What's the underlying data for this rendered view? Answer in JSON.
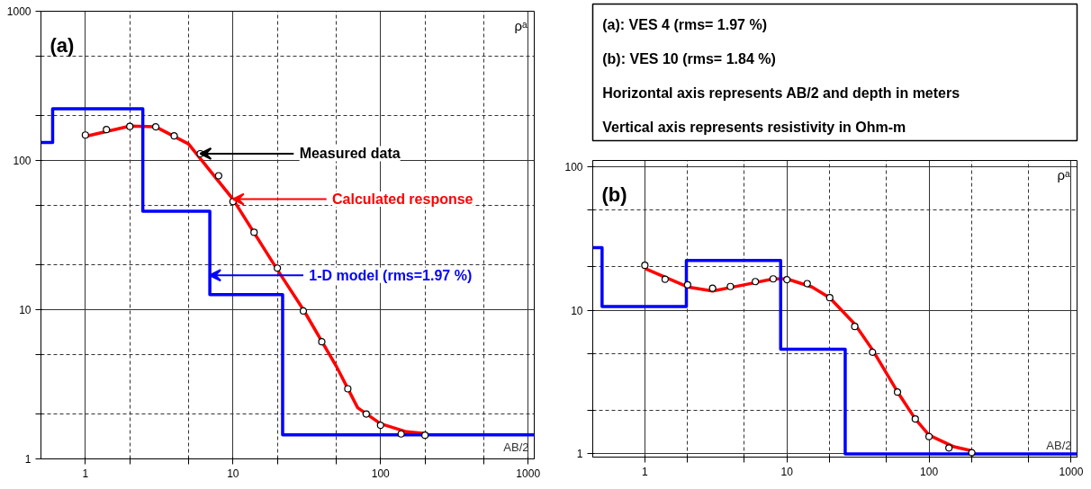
{
  "chart_data": [
    {
      "type": "line",
      "title": "(a)",
      "xlabel": "AB/2",
      "ylabel": "ρᵃ",
      "log": "xy",
      "grid": true,
      "xlim": [
        0.5,
        1100
      ],
      "ylim": [
        1,
        1000
      ],
      "xticks": [
        1,
        {
          "value": 2,
          "label": null
        },
        {
          "value": 5,
          "label": null
        },
        10,
        {
          "value": 20,
          "label": null
        },
        {
          "value": 50,
          "label": null
        },
        100,
        {
          "value": 200,
          "label": null
        },
        {
          "value": 500,
          "label": null
        },
        1000
      ],
      "yticks": [
        1,
        {
          "value": 2,
          "label": null
        },
        {
          "value": 5,
          "label": null
        },
        10,
        {
          "value": 20,
          "label": null
        },
        {
          "value": 50,
          "label": null
        },
        100,
        {
          "value": 200,
          "label": null
        },
        {
          "value": 500,
          "label": null
        },
        1000
      ],
      "series": [
        {
          "type": "scatter",
          "marker": "circle",
          "color": "#000000",
          "x": [
            1,
            1.39,
            2,
            3,
            4,
            6,
            8,
            10,
            13.9,
            20,
            30,
            40,
            60,
            80,
            100,
            138,
            200
          ],
          "values": [
            148,
            161,
            169,
            168,
            146,
            111,
            79,
            53,
            33,
            19,
            9.8,
            6.1,
            2.95,
            2.0,
            1.68,
            1.47,
            1.44
          ]
        },
        {
          "type": "line",
          "color": "#ff0000",
          "x": [
            1,
            2,
            3,
            5,
            10,
            20,
            30,
            50,
            70,
            100,
            150,
            200
          ],
          "values": [
            145,
            170,
            168,
            129,
            55,
            18.5,
            10,
            4.2,
            2.2,
            1.72,
            1.52,
            1.48
          ]
        },
        {
          "type": "line",
          "color": "#0000ff",
          "x": [
            0.5,
            0.6,
            0.6,
            2.45,
            2.45,
            6.97,
            6.97,
            21.7,
            21.7,
            1100
          ],
          "values": [
            132,
            132,
            222,
            222,
            45.6,
            45.6,
            12.6,
            12.6,
            1.45,
            1.45
          ]
        }
      ],
      "annotations": [
        {
          "text": "Measured data",
          "x": 6,
          "y": 111
        },
        {
          "text": "Calculated response",
          "x": 10,
          "y": 55
        },
        {
          "text": "1-D model (rms=1.97 %)",
          "x": 6.97,
          "y": 17
        }
      ]
    },
    {
      "type": "other",
      "annotations": [
        "(a): VES  4  (rms= 1.97 %)",
        "(b): VES 10 (rms= 1.84 %)",
        "Horizontal axis represents AB/2 and depth in meters",
        "Vertical axis represents resistivity in Ohm-m"
      ]
    },
    {
      "type": "line",
      "title": "(b)",
      "xlabel": "AB/2",
      "ylabel": "ρᵃ",
      "log": "xy",
      "grid": true,
      "xlim": [
        0.43,
        1100
      ],
      "ylim": [
        0.95,
        110
      ],
      "xticks": [
        1,
        {
          "value": 2,
          "label": null
        },
        {
          "value": 5,
          "label": null
        },
        10,
        {
          "value": 20,
          "label": null
        },
        {
          "value": 50,
          "label": null
        },
        100,
        {
          "value": 200,
          "label": null
        },
        {
          "value": 500,
          "label": null
        },
        1000
      ],
      "yticks": [
        1,
        {
          "value": 2,
          "label": null
        },
        {
          "value": 5,
          "label": null
        },
        10,
        {
          "value": 20,
          "label": null
        },
        {
          "value": 50,
          "label": null
        },
        100
      ],
      "series": [
        {
          "type": "scatter",
          "marker": "circle",
          "color": "#000000",
          "x": [
            1,
            1.39,
            2,
            3,
            4,
            6,
            8,
            10,
            13.9,
            20,
            30,
            40,
            60,
            80,
            100,
            138,
            200
          ],
          "values": [
            20.5,
            16.4,
            15.0,
            14.2,
            14.6,
            15.8,
            16.5,
            16.3,
            15.3,
            12.2,
            7.7,
            5.1,
            2.69,
            1.75,
            1.32,
            1.1,
            1.02
          ]
        },
        {
          "type": "line",
          "color": "#ff0000",
          "x": [
            1,
            2,
            3,
            5,
            8,
            10,
            15,
            20,
            30,
            40,
            60,
            80,
            100,
            150,
            200
          ],
          "values": [
            19.5,
            14.5,
            13.6,
            15,
            16.5,
            16.5,
            14.5,
            12.2,
            8,
            5.3,
            2.7,
            1.75,
            1.35,
            1.12,
            1.05
          ]
        },
        {
          "type": "line",
          "color": "#0000ff",
          "x": [
            0.43,
            0.5,
            0.5,
            1.96,
            1.96,
            9.03,
            9.03,
            25.7,
            25.7,
            1100
          ],
          "values": [
            27.2,
            27.2,
            10.6,
            10.6,
            22.2,
            22.2,
            5.35,
            5.35,
            1.0,
            1.0
          ]
        }
      ]
    }
  ]
}
